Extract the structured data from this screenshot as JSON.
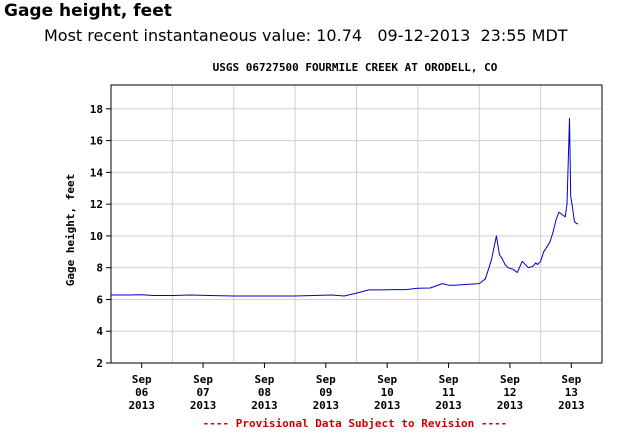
{
  "header": {
    "title": "Gage height, feet",
    "recent_label": "Most recent instantaneous value:",
    "recent_value": "10.74",
    "recent_date": "09-12-2013",
    "recent_time": "23:55 MDT"
  },
  "chart_data": {
    "type": "line",
    "title": "USGS 06727500 FOURMILE CREEK AT ORODELL, CO",
    "ylabel": "Gage height, feet",
    "xlabel": "",
    "ylim": [
      2,
      19.5
    ],
    "yticks": [
      2,
      4,
      6,
      8,
      10,
      12,
      14,
      16,
      18
    ],
    "xlim": [
      0,
      8
    ],
    "xticks": [
      {
        "x": 0.5,
        "label": [
          "Sep",
          "06",
          "2013"
        ]
      },
      {
        "x": 1.5,
        "label": [
          "Sep",
          "07",
          "2013"
        ]
      },
      {
        "x": 2.5,
        "label": [
          "Sep",
          "08",
          "2013"
        ]
      },
      {
        "x": 3.5,
        "label": [
          "Sep",
          "09",
          "2013"
        ]
      },
      {
        "x": 4.5,
        "label": [
          "Sep",
          "10",
          "2013"
        ]
      },
      {
        "x": 5.5,
        "label": [
          "Sep",
          "11",
          "2013"
        ]
      },
      {
        "x": 6.5,
        "label": [
          "Sep",
          "12",
          "2013"
        ]
      },
      {
        "x": 7.5,
        "label": [
          "Sep",
          "13",
          "2013"
        ]
      }
    ],
    "grid": true,
    "color": "#0000cc",
    "footer": "---- Provisional Data Subject to Revision ----",
    "series": [
      {
        "x": [
          0.0,
          0.3,
          0.5,
          0.7,
          1.0,
          1.3,
          1.6,
          2.0,
          2.5,
          3.0,
          3.3,
          3.6,
          3.8,
          4.0,
          4.2,
          4.4,
          4.6,
          4.8,
          5.0,
          5.2,
          5.4,
          5.5,
          5.6,
          5.8,
          6.0,
          6.1,
          6.2,
          6.28,
          6.33,
          6.37,
          6.42,
          6.47,
          6.55,
          6.62,
          6.7,
          6.8,
          6.88,
          6.92,
          6.95,
          7.0,
          7.05,
          7.15,
          7.2,
          7.25,
          7.3,
          7.4,
          7.43,
          7.47,
          7.49,
          7.52,
          7.55,
          7.58,
          7.61
        ],
        "y": [
          6.28,
          6.28,
          6.3,
          6.25,
          6.25,
          6.28,
          6.25,
          6.22,
          6.22,
          6.22,
          6.25,
          6.28,
          6.22,
          6.4,
          6.6,
          6.6,
          6.62,
          6.62,
          6.7,
          6.72,
          7.0,
          6.9,
          6.9,
          6.95,
          7.0,
          7.3,
          8.5,
          10.0,
          8.8,
          8.6,
          8.2,
          8.0,
          7.9,
          7.7,
          8.4,
          8.0,
          8.1,
          8.3,
          8.2,
          8.4,
          9.0,
          9.6,
          10.2,
          11.0,
          11.5,
          11.2,
          12.0,
          17.4,
          12.5,
          11.8,
          10.9,
          10.8,
          10.74
        ]
      }
    ]
  }
}
